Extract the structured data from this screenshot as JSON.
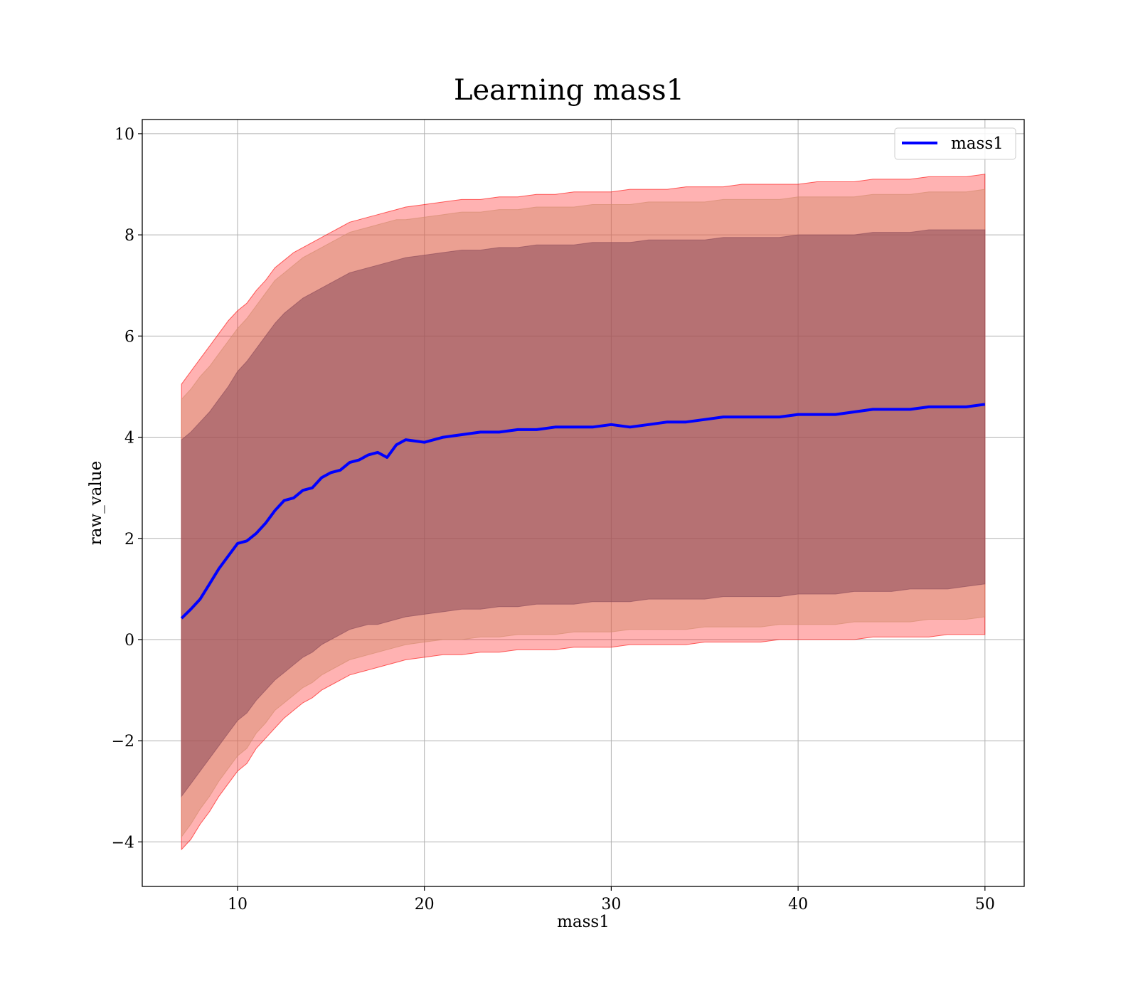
{
  "chart_data": {
    "type": "line",
    "title": "Learning mass1",
    "xlabel": "mass1",
    "ylabel": "raw_value",
    "xlim": [
      4.9,
      52.1
    ],
    "ylim": [
      -4.88,
      10.28
    ],
    "xticks": [
      10,
      20,
      30,
      40,
      50
    ],
    "yticks": [
      -4,
      -2,
      0,
      2,
      4,
      6,
      8,
      10
    ],
    "xtick_labels": [
      "10",
      "20",
      "30",
      "40",
      "50"
    ],
    "ytick_labels": [
      "−4",
      "−2",
      "0",
      "2",
      "4",
      "6",
      "8",
      "10"
    ],
    "grid": true,
    "legend": {
      "position": "top-right",
      "entries": [
        "mass1"
      ]
    },
    "colors": {
      "line": "#0000ff",
      "band": "#ff0000",
      "band_overlap": "#8b4a5a"
    },
    "x": [
      7.0,
      7.5,
      8.0,
      8.5,
      9.0,
      9.5,
      10.0,
      10.5,
      11.0,
      11.5,
      12.0,
      12.5,
      13.0,
      13.5,
      14.0,
      14.5,
      15.0,
      15.5,
      16.0,
      16.5,
      17.0,
      17.5,
      18.0,
      18.5,
      19.0,
      20.0,
      21.0,
      22.0,
      23.0,
      24.0,
      25.0,
      26.0,
      27.0,
      28.0,
      29.0,
      30.0,
      31.0,
      32.0,
      33.0,
      34.0,
      35.0,
      36.0,
      37.0,
      38.0,
      39.0,
      40.0,
      41.0,
      42.0,
      43.0,
      44.0,
      45.0,
      46.0,
      47.0,
      48.0,
      49.0,
      50.0
    ],
    "series": [
      {
        "name": "mass1",
        "values": [
          0.42,
          0.6,
          0.8,
          1.1,
          1.4,
          1.65,
          1.9,
          1.95,
          2.1,
          2.3,
          2.55,
          2.75,
          2.8,
          2.95,
          3.0,
          3.2,
          3.3,
          3.35,
          3.5,
          3.55,
          3.65,
          3.7,
          3.6,
          3.85,
          3.95,
          3.9,
          4.0,
          4.05,
          4.1,
          4.1,
          4.15,
          4.15,
          4.2,
          4.2,
          4.2,
          4.25,
          4.2,
          4.25,
          4.3,
          4.3,
          4.35,
          4.4,
          4.4,
          4.4,
          4.4,
          4.45,
          4.45,
          4.45,
          4.5,
          4.55,
          4.55,
          4.55,
          4.6,
          4.6,
          4.6,
          4.65
        ]
      }
    ],
    "bands": [
      {
        "lower": [
          -3.1,
          -2.85,
          -2.6,
          -2.35,
          -2.1,
          -1.85,
          -1.6,
          -1.45,
          -1.2,
          -1.0,
          -0.8,
          -0.65,
          -0.5,
          -0.35,
          -0.25,
          -0.1,
          0.0,
          0.1,
          0.2,
          0.25,
          0.3,
          0.3,
          0.35,
          0.4,
          0.45,
          0.5,
          0.55,
          0.6,
          0.6,
          0.65,
          0.65,
          0.7,
          0.7,
          0.7,
          0.75,
          0.75,
          0.75,
          0.8,
          0.8,
          0.8,
          0.8,
          0.85,
          0.85,
          0.85,
          0.85,
          0.9,
          0.9,
          0.9,
          0.95,
          0.95,
          0.95,
          1.0,
          1.0,
          1.0,
          1.05,
          1.1
        ],
        "upper": [
          3.95,
          4.1,
          4.3,
          4.5,
          4.75,
          5.0,
          5.3,
          5.5,
          5.75,
          6.0,
          6.25,
          6.45,
          6.6,
          6.75,
          6.85,
          6.95,
          7.05,
          7.15,
          7.25,
          7.3,
          7.35,
          7.4,
          7.45,
          7.5,
          7.55,
          7.6,
          7.65,
          7.7,
          7.7,
          7.75,
          7.75,
          7.8,
          7.8,
          7.8,
          7.85,
          7.85,
          7.85,
          7.9,
          7.9,
          7.9,
          7.9,
          7.95,
          7.95,
          7.95,
          7.95,
          8.0,
          8.0,
          8.0,
          8.0,
          8.05,
          8.05,
          8.05,
          8.1,
          8.1,
          8.1,
          8.1
        ]
      },
      {
        "lower": [
          -3.9,
          -3.65,
          -3.35,
          -3.1,
          -2.8,
          -2.55,
          -2.3,
          -2.15,
          -1.85,
          -1.65,
          -1.4,
          -1.25,
          -1.1,
          -0.95,
          -0.85,
          -0.7,
          -0.6,
          -0.5,
          -0.4,
          -0.35,
          -0.3,
          -0.25,
          -0.2,
          -0.15,
          -0.1,
          -0.05,
          0.0,
          0.0,
          0.05,
          0.05,
          0.1,
          0.1,
          0.1,
          0.15,
          0.15,
          0.15,
          0.2,
          0.2,
          0.2,
          0.2,
          0.25,
          0.25,
          0.25,
          0.25,
          0.3,
          0.3,
          0.3,
          0.3,
          0.35,
          0.35,
          0.35,
          0.35,
          0.4,
          0.4,
          0.4,
          0.45
        ],
        "upper": [
          4.75,
          4.95,
          5.2,
          5.4,
          5.65,
          5.9,
          6.15,
          6.35,
          6.6,
          6.85,
          7.1,
          7.25,
          7.4,
          7.55,
          7.65,
          7.75,
          7.85,
          7.95,
          8.05,
          8.1,
          8.15,
          8.2,
          8.25,
          8.3,
          8.3,
          8.35,
          8.4,
          8.45,
          8.45,
          8.5,
          8.5,
          8.55,
          8.55,
          8.55,
          8.6,
          8.6,
          8.6,
          8.65,
          8.65,
          8.65,
          8.65,
          8.7,
          8.7,
          8.7,
          8.7,
          8.75,
          8.75,
          8.75,
          8.75,
          8.8,
          8.8,
          8.8,
          8.85,
          8.85,
          8.85,
          8.9
        ]
      },
      {
        "lower": [
          -4.15,
          -3.95,
          -3.65,
          -3.4,
          -3.1,
          -2.85,
          -2.6,
          -2.45,
          -2.15,
          -1.95,
          -1.75,
          -1.55,
          -1.4,
          -1.25,
          -1.15,
          -1.0,
          -0.9,
          -0.8,
          -0.7,
          -0.65,
          -0.6,
          -0.55,
          -0.5,
          -0.45,
          -0.4,
          -0.35,
          -0.3,
          -0.3,
          -0.25,
          -0.25,
          -0.2,
          -0.2,
          -0.2,
          -0.15,
          -0.15,
          -0.15,
          -0.1,
          -0.1,
          -0.1,
          -0.1,
          -0.05,
          -0.05,
          -0.05,
          -0.05,
          0.0,
          0.0,
          0.0,
          0.0,
          0.0,
          0.05,
          0.05,
          0.05,
          0.05,
          0.1,
          0.1,
          0.1
        ],
        "upper": [
          5.05,
          5.3,
          5.55,
          5.8,
          6.05,
          6.3,
          6.5,
          6.65,
          6.9,
          7.1,
          7.35,
          7.5,
          7.65,
          7.75,
          7.85,
          7.95,
          8.05,
          8.15,
          8.25,
          8.3,
          8.35,
          8.4,
          8.45,
          8.5,
          8.55,
          8.6,
          8.65,
          8.7,
          8.7,
          8.75,
          8.75,
          8.8,
          8.8,
          8.85,
          8.85,
          8.85,
          8.9,
          8.9,
          8.9,
          8.95,
          8.95,
          8.95,
          9.0,
          9.0,
          9.0,
          9.0,
          9.05,
          9.05,
          9.05,
          9.1,
          9.1,
          9.1,
          9.15,
          9.15,
          9.15,
          9.2
        ]
      }
    ]
  }
}
